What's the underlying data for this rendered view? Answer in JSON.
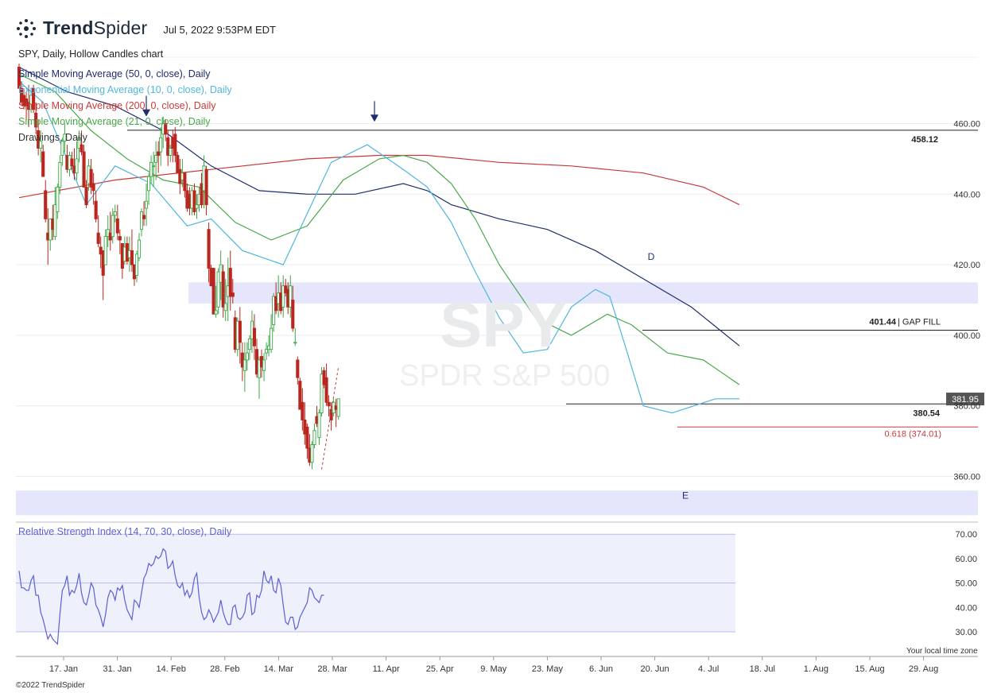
{
  "header": {
    "brand_bold": "Trend",
    "brand_light": "Spider",
    "timestamp": "Jul 5, 2022 9:53PM EDT",
    "chart_title": "SPY, Daily, Hollow Candles chart"
  },
  "watermark": {
    "ticker": "SPY",
    "name": "SPDR S&P 500"
  },
  "legend": [
    {
      "label": "Simple Moving Average (50, 0, close), Daily",
      "color": "#1f2d6e"
    },
    {
      "label": "Exponential Moving Average (10, 0, close), Daily",
      "color": "#4fb6dd"
    },
    {
      "label": "Simple Moving Average (200, 0, close), Daily",
      "color": "#c83a3a"
    },
    {
      "label": "Simple Moving Average (21, 0, close), Daily",
      "color": "#4aa84a"
    },
    {
      "label": "Drawings, Daily",
      "color": "#333333"
    }
  ],
  "rsi_title": "Relative Strength Index (14, 70, 30, close), Daily",
  "timezone_note": "Your local time zone",
  "copyright": "©2022 TrendSpider",
  "colors": {
    "up": "#3aa845",
    "down": "#b8261f",
    "zone": "#e0e2fb",
    "rsi": "#5b5fd6",
    "rsi_band": "#eef0fc"
  },
  "chart_data": {
    "type": "candlestick",
    "price_axis": {
      "ticks": [
        360,
        380,
        400,
        420,
        440,
        460
      ],
      "tick_labels": [
        "360.00",
        "380.00",
        "400.00",
        "420.00",
        "440.00",
        "460.00"
      ],
      "range": [
        355,
        482
      ]
    },
    "x_tick_labels": [
      "17. Jan",
      "31. Jan",
      "14. Feb",
      "28. Feb",
      "14. Mar",
      "28. Mar",
      "11. Apr",
      "25. Apr",
      "9. May",
      "23. May",
      "6. Jun",
      "20. Jun",
      "4. Jul",
      "18. Jul",
      "1. Aug",
      "15. Aug",
      "29. Aug"
    ],
    "last_price": "381.95",
    "levels": [
      {
        "label": "458.12",
        "value": 458.12
      },
      {
        "label": "401.44",
        "suffix": "| GAP FILL",
        "value": 401.44
      },
      {
        "label": "380.54",
        "value": 380.54
      },
      {
        "label": "0.618 (374.01)",
        "value": 374.01
      }
    ],
    "zones": [
      {
        "from": 409,
        "to": 415
      },
      {
        "from": 349,
        "to": 356
      }
    ],
    "annotations": [
      {
        "text": "D",
        "price": 422.5
      },
      {
        "text": "E",
        "price": 355
      }
    ],
    "candles": [
      [
        476,
        477,
        470,
        470
      ],
      [
        470,
        472,
        465,
        466
      ],
      [
        468,
        470,
        464,
        465
      ],
      [
        467,
        469,
        461,
        465
      ],
      [
        466,
        471,
        459,
        464
      ],
      [
        464,
        470,
        463,
        468
      ],
      [
        470,
        471,
        463,
        464
      ],
      [
        463,
        466,
        457,
        459
      ],
      [
        458,
        461,
        451,
        453
      ],
      [
        453,
        458,
        449,
        455
      ],
      [
        452,
        454,
        445,
        445
      ],
      [
        441,
        444,
        432,
        433
      ],
      [
        429,
        436,
        420,
        427
      ],
      [
        427,
        433,
        424,
        433
      ],
      [
        433,
        437,
        427,
        430
      ],
      [
        428,
        442,
        427,
        437
      ],
      [
        435,
        443,
        433,
        442
      ],
      [
        442,
        451,
        440,
        449
      ],
      [
        451,
        456,
        448,
        455
      ],
      [
        455,
        460,
        452,
        457
      ],
      [
        451,
        454,
        446,
        447
      ],
      [
        447,
        452,
        445,
        451
      ],
      [
        450,
        452,
        447,
        448
      ],
      [
        448,
        453,
        444,
        446
      ],
      [
        446,
        455,
        444,
        450
      ],
      [
        453,
        458,
        449,
        456
      ],
      [
        454,
        458,
        451,
        452
      ],
      [
        452,
        454,
        442,
        442
      ],
      [
        442,
        444,
        436,
        437
      ],
      [
        443,
        450,
        441,
        448
      ],
      [
        447,
        450,
        440,
        442
      ],
      [
        443,
        446,
        437,
        441
      ],
      [
        438,
        441,
        432,
        433
      ],
      [
        429,
        434,
        425,
        426
      ],
      [
        425,
        428,
        419,
        423
      ],
      [
        424,
        424,
        410,
        417
      ],
      [
        420,
        430,
        420,
        428
      ],
      [
        428,
        434,
        425,
        430
      ],
      [
        429,
        435,
        424,
        427
      ],
      [
        428,
        436,
        426,
        434
      ],
      [
        434,
        437,
        432,
        435
      ],
      [
        433,
        437,
        427,
        429
      ],
      [
        428,
        430,
        423,
        427
      ],
      [
        426,
        426,
        416,
        419
      ],
      [
        421,
        428,
        420,
        425
      ],
      [
        426,
        428,
        420,
        421
      ],
      [
        422,
        428,
        418,
        424
      ],
      [
        424,
        430,
        418,
        420
      ],
      [
        420,
        420,
        414,
        416
      ],
      [
        417,
        424,
        415,
        423
      ],
      [
        422,
        429,
        421,
        427
      ],
      [
        430,
        436,
        428,
        435
      ],
      [
        434,
        438,
        431,
        433
      ],
      [
        436,
        443,
        431,
        438
      ],
      [
        441,
        446,
        437,
        445
      ],
      [
        445,
        451,
        443,
        449
      ],
      [
        448,
        452,
        442,
        448
      ],
      [
        449,
        455,
        444,
        451
      ],
      [
        452,
        455,
        446,
        451
      ],
      [
        452,
        459,
        448,
        456
      ],
      [
        457,
        462,
        453,
        460
      ],
      [
        460,
        461,
        455,
        457
      ],
      [
        456,
        458,
        448,
        451
      ],
      [
        451,
        454,
        449,
        453
      ],
      [
        456,
        458,
        449,
        453
      ],
      [
        457,
        459,
        449,
        451
      ],
      [
        451,
        452,
        446,
        446
      ],
      [
        447,
        450,
        440,
        443
      ],
      [
        444,
        450,
        442,
        446
      ],
      [
        446,
        446,
        439,
        441
      ],
      [
        441,
        443,
        435,
        436
      ],
      [
        440,
        442,
        434,
        436
      ],
      [
        436,
        442,
        434,
        441
      ],
      [
        441,
        443,
        434,
        435
      ],
      [
        436,
        440,
        433,
        437
      ],
      [
        437,
        442,
        435,
        440
      ],
      [
        443,
        446,
        436,
        437
      ],
      [
        441,
        451,
        436,
        448
      ],
      [
        447,
        448,
        434,
        437
      ],
      [
        430,
        432,
        415,
        419
      ],
      [
        419,
        420,
        414,
        414
      ],
      [
        419,
        419,
        406,
        406
      ],
      [
        406,
        414,
        405,
        407
      ],
      [
        408,
        419,
        406,
        418
      ],
      [
        415,
        424,
        410,
        420
      ],
      [
        418,
        420,
        405,
        408
      ],
      [
        407,
        416,
        404,
        409
      ],
      [
        411,
        422,
        404,
        414
      ],
      [
        419,
        424,
        407,
        411
      ],
      [
        412,
        416,
        409,
        411
      ],
      [
        405,
        407,
        395,
        396
      ],
      [
        396,
        405,
        394,
        404
      ],
      [
        404,
        408,
        392,
        398
      ],
      [
        395,
        398,
        387,
        391
      ],
      [
        390,
        398,
        384,
        393
      ],
      [
        393,
        398,
        390,
        395
      ],
      [
        396,
        400,
        393,
        399
      ],
      [
        399,
        407,
        395,
        404
      ],
      [
        402,
        406,
        393,
        397
      ],
      [
        396,
        399,
        388,
        389
      ],
      [
        388,
        394,
        382,
        393
      ],
      [
        394,
        396,
        388,
        391
      ],
      [
        390,
        395,
        387,
        393
      ],
      [
        395,
        398,
        393,
        396
      ],
      [
        396,
        400,
        394,
        397
      ],
      [
        396,
        406,
        395,
        402
      ],
      [
        403,
        412,
        401,
        411
      ],
      [
        411,
        415,
        406,
        407
      ],
      [
        409,
        417,
        405,
        412
      ],
      [
        412,
        415,
        406,
        407
      ],
      [
        408,
        417,
        405,
        414
      ],
      [
        414,
        416,
        411,
        412
      ],
      [
        413,
        415,
        406,
        408
      ],
      [
        408,
        417,
        405,
        414
      ],
      [
        410,
        414,
        401,
        402
      ],
      [
        398,
        402,
        397,
        398
      ],
      [
        393,
        394,
        386,
        388
      ],
      [
        387,
        388,
        379,
        379
      ],
      [
        381,
        385,
        373,
        376
      ],
      [
        376,
        381,
        369,
        372
      ],
      [
        374,
        375,
        365,
        368
      ],
      [
        368,
        372,
        363,
        364
      ],
      [
        364,
        370,
        362,
        369
      ],
      [
        369,
        375,
        368,
        373
      ],
      [
        377,
        380,
        374,
        375
      ],
      [
        371,
        379,
        369,
        378
      ],
      [
        378,
        391,
        377,
        389
      ],
      [
        390,
        391,
        385,
        386
      ],
      [
        388,
        392,
        380,
        381
      ],
      [
        381,
        383,
        377,
        380
      ],
      [
        379,
        381,
        373,
        376
      ],
      [
        378,
        382,
        377,
        381
      ],
      [
        380,
        382,
        374,
        379
      ],
      [
        377,
        382,
        376,
        382
      ]
    ],
    "sma50": [
      [
        0,
        476
      ],
      [
        20,
        469
      ],
      [
        40,
        465
      ],
      [
        60,
        458
      ],
      [
        80,
        448
      ],
      [
        100,
        441
      ],
      [
        120,
        440
      ],
      [
        140,
        440
      ],
      [
        160,
        443
      ],
      [
        170,
        441
      ],
      [
        180,
        437
      ],
      [
        200,
        433
      ],
      [
        220,
        430
      ],
      [
        240,
        424
      ],
      [
        260,
        416
      ],
      [
        280,
        408
      ],
      [
        300,
        397
      ]
    ],
    "ema10": [
      [
        0,
        472
      ],
      [
        10,
        466
      ],
      [
        20,
        450
      ],
      [
        28,
        437
      ],
      [
        40,
        448
      ],
      [
        55,
        443
      ],
      [
        70,
        431
      ],
      [
        80,
        433
      ],
      [
        93,
        424
      ],
      [
        110,
        420
      ],
      [
        130,
        449
      ],
      [
        145,
        454
      ],
      [
        160,
        447
      ],
      [
        170,
        442
      ],
      [
        180,
        432
      ],
      [
        190,
        418
      ],
      [
        200,
        405
      ],
      [
        210,
        395
      ],
      [
        220,
        396
      ],
      [
        230,
        408
      ],
      [
        240,
        413
      ],
      [
        246,
        411
      ],
      [
        252,
        398
      ],
      [
        260,
        380
      ],
      [
        272,
        378
      ],
      [
        290,
        382
      ],
      [
        300,
        382
      ]
    ],
    "sma200": [
      [
        0,
        439
      ],
      [
        40,
        444
      ],
      [
        80,
        447
      ],
      [
        120,
        450
      ],
      [
        150,
        451
      ],
      [
        170,
        451
      ],
      [
        200,
        449
      ],
      [
        230,
        448
      ],
      [
        260,
        446
      ],
      [
        285,
        442
      ],
      [
        300,
        437
      ]
    ],
    "sma21": [
      [
        0,
        474
      ],
      [
        15,
        469
      ],
      [
        30,
        458
      ],
      [
        45,
        450
      ],
      [
        60,
        444
      ],
      [
        75,
        442
      ],
      [
        90,
        432
      ],
      [
        105,
        427
      ],
      [
        120,
        431
      ],
      [
        135,
        444
      ],
      [
        150,
        450
      ],
      [
        160,
        451
      ],
      [
        170,
        449
      ],
      [
        180,
        443
      ],
      [
        190,
        433
      ],
      [
        200,
        420
      ],
      [
        215,
        405
      ],
      [
        230,
        400
      ],
      [
        245,
        406
      ],
      [
        255,
        403
      ],
      [
        270,
        395
      ],
      [
        285,
        393
      ],
      [
        300,
        386
      ]
    ],
    "rsi": {
      "ticks": [
        30,
        40,
        50,
        60,
        70
      ],
      "tick_labels": [
        "30.00",
        "40.00",
        "50.00",
        "60.00",
        "70.00"
      ],
      "values": [
        55,
        48,
        48,
        47,
        47,
        51,
        53,
        45,
        45,
        38,
        35,
        31,
        27,
        29,
        27,
        26,
        25,
        37,
        47,
        49,
        53,
        45,
        47,
        46,
        49,
        54,
        46,
        42,
        41,
        45,
        50,
        48,
        41,
        39,
        36,
        32,
        37,
        44,
        47,
        46,
        43,
        48,
        47,
        49,
        43,
        39,
        37,
        35,
        43,
        42,
        40,
        46,
        52,
        54,
        58,
        57,
        58,
        61,
        60,
        61,
        64,
        63,
        56,
        57,
        59,
        53,
        49,
        48,
        50,
        45,
        47,
        44,
        46,
        52,
        54,
        44,
        38,
        35,
        36,
        39,
        37,
        34,
        36,
        38,
        43,
        38,
        35,
        33,
        33,
        40,
        41,
        36,
        35,
        36,
        38,
        45,
        46,
        37,
        38,
        45,
        44,
        47,
        55,
        51,
        50,
        53,
        47,
        46,
        52,
        49,
        41,
        34,
        33,
        36,
        36,
        31,
        32,
        36,
        38,
        40,
        42,
        48,
        47,
        44,
        43,
        42,
        45,
        45
      ]
    }
  }
}
